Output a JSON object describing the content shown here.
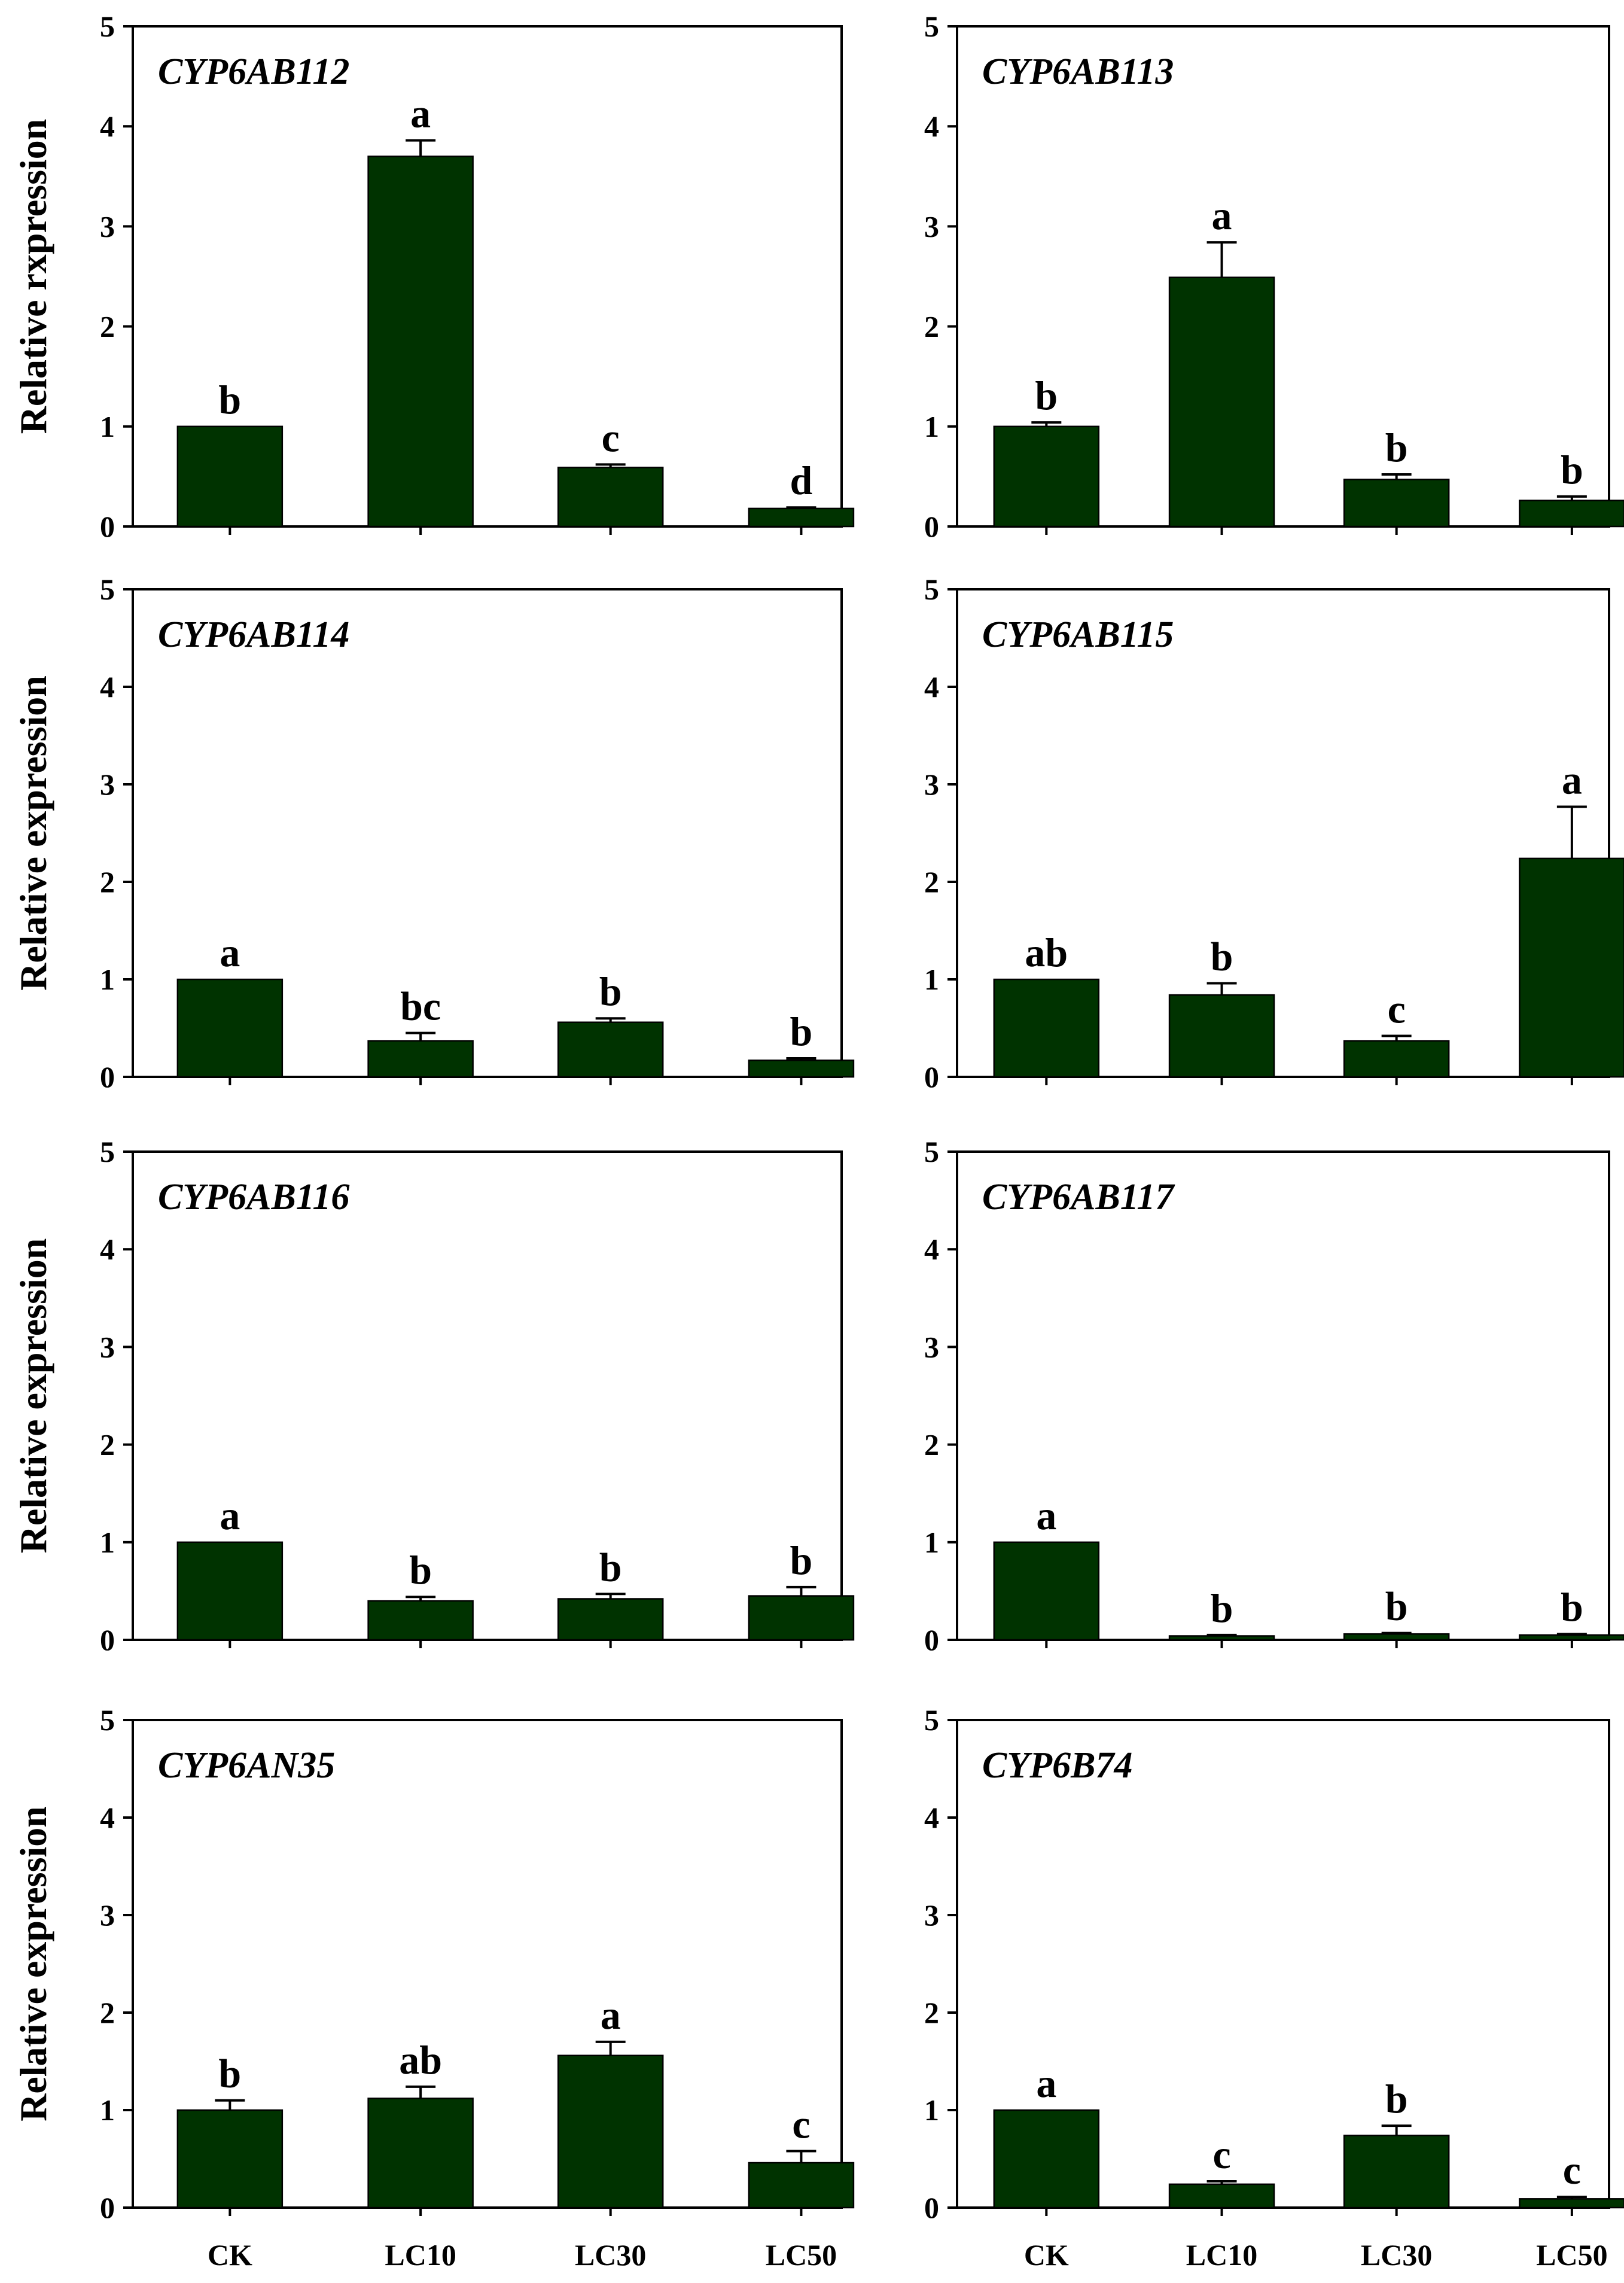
{
  "colors": {
    "bar": "#003300",
    "frame": "#000000",
    "background": "#ffffff"
  },
  "chart_data": {
    "type": "bar",
    "grid": false,
    "categories": [
      "CK",
      "LC10",
      "LC30",
      "LC50"
    ],
    "ylim": [
      0,
      5
    ],
    "yticks": [
      0,
      1,
      2,
      3,
      4,
      5
    ],
    "panels": [
      {
        "title": "CYP6AB112",
        "ylabel": "Relative rxpression",
        "values": [
          1.0,
          3.7,
          0.59,
          0.18
        ],
        "errors": [
          0.0,
          0.16,
          0.03,
          0.01
        ],
        "labels": [
          "b",
          "a",
          "c",
          "d"
        ]
      },
      {
        "title": "CYP6AB113",
        "ylabel": "",
        "values": [
          1.0,
          2.49,
          0.47,
          0.26
        ],
        "errors": [
          0.04,
          0.35,
          0.05,
          0.04
        ],
        "labels": [
          "b",
          "a",
          "b",
          "b"
        ]
      },
      {
        "title": "CYP6AB114",
        "ylabel": "Relative expression",
        "values": [
          1.0,
          0.37,
          0.56,
          0.17
        ],
        "errors": [
          0.0,
          0.08,
          0.04,
          0.02
        ],
        "labels": [
          "a",
          "bc",
          "b",
          "b"
        ]
      },
      {
        "title": "CYP6AB115",
        "ylabel": "",
        "values": [
          1.0,
          0.84,
          0.37,
          2.24
        ],
        "errors": [
          0.0,
          0.12,
          0.05,
          0.53
        ],
        "labels": [
          "ab",
          "b",
          "c",
          "a"
        ]
      },
      {
        "title": "CYP6AB116",
        "ylabel": "Relative expression",
        "values": [
          1.0,
          0.4,
          0.42,
          0.45
        ],
        "errors": [
          0.0,
          0.04,
          0.05,
          0.09
        ],
        "labels": [
          "a",
          "b",
          "b",
          "b"
        ]
      },
      {
        "title": "CYP6AB117",
        "ylabel": "",
        "values": [
          1.0,
          0.04,
          0.06,
          0.05
        ],
        "errors": [
          0.0,
          0.01,
          0.01,
          0.01
        ],
        "labels": [
          "a",
          "b",
          "b",
          "b"
        ]
      },
      {
        "title": "CYP6AN35",
        "ylabel": "Relative expression",
        "values": [
          1.0,
          1.12,
          1.56,
          0.46
        ],
        "errors": [
          0.1,
          0.12,
          0.14,
          0.12
        ],
        "labels": [
          "b",
          "ab",
          "a",
          "c"
        ]
      },
      {
        "title": "CYP6B74",
        "ylabel": "",
        "values": [
          1.0,
          0.24,
          0.74,
          0.09
        ],
        "errors": [
          0.0,
          0.03,
          0.1,
          0.02
        ],
        "labels": [
          "a",
          "c",
          "b",
          "c"
        ]
      }
    ]
  }
}
